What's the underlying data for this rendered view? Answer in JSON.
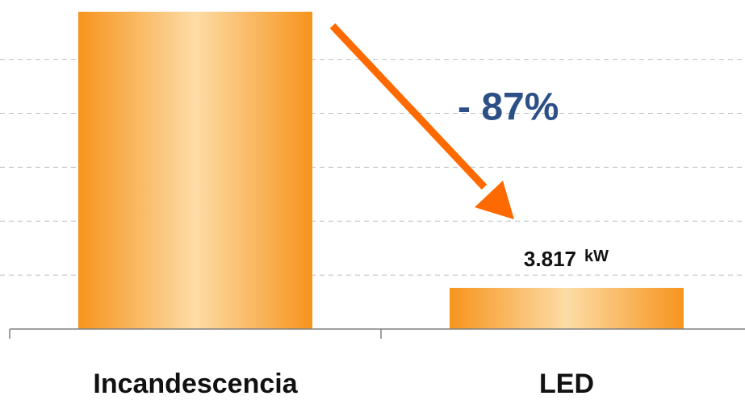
{
  "chart_data": {
    "type": "bar",
    "categories": [
      "Incandescencia",
      "LED"
    ],
    "values": [
      29.4,
      3.817
    ],
    "value_labels": [
      null,
      "3.817"
    ],
    "unit": "kW",
    "annotation": "- 87%",
    "color": "#f7941d",
    "ylim": [
      0,
      30.5
    ],
    "yticks": [
      0,
      5,
      10,
      15,
      20,
      25
    ],
    "grid": true
  }
}
